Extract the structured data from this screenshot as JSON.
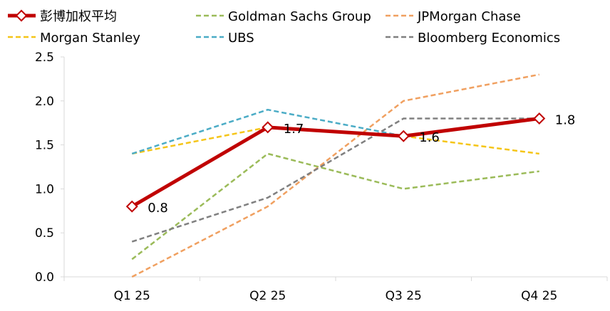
{
  "chart_data": {
    "type": "line",
    "title": "",
    "xlabel": "",
    "ylabel": "",
    "categories": [
      "Q1 25",
      "Q2 25",
      "Q3 25",
      "Q4 25"
    ],
    "y_ticks": [
      "0.0",
      "0.5",
      "1.0",
      "1.5",
      "2.0",
      "2.5"
    ],
    "ylim": [
      0,
      2.5
    ],
    "grid": false,
    "legend_position": "top",
    "series": [
      {
        "name": "彭博加权平均",
        "values": [
          0.8,
          1.7,
          1.6,
          1.8
        ],
        "color": "#c00000",
        "style": "solid-marker",
        "labels": [
          "0.8",
          "1.7",
          "1.6",
          "1.8"
        ]
      },
      {
        "name": "Goldman Sachs Group",
        "values": [
          0.2,
          1.4,
          1.0,
          1.2
        ],
        "color": "#9bbb59",
        "style": "dashed"
      },
      {
        "name": "JPMorgan Chase",
        "values": [
          0.0,
          0.8,
          2.0,
          2.3
        ],
        "color": "#f0a060",
        "style": "dashed"
      },
      {
        "name": "Morgan Stanley",
        "values": [
          1.4,
          1.7,
          1.6,
          1.4
        ],
        "color": "#f5c518",
        "style": "dashed"
      },
      {
        "name": "UBS",
        "values": [
          1.4,
          1.9,
          1.6,
          1.8
        ],
        "color": "#4bacc6",
        "style": "dashed"
      },
      {
        "name": "Bloomberg Economics",
        "values": [
          0.4,
          0.9,
          1.8,
          1.8
        ],
        "color": "#808080",
        "style": "dashed"
      }
    ]
  }
}
